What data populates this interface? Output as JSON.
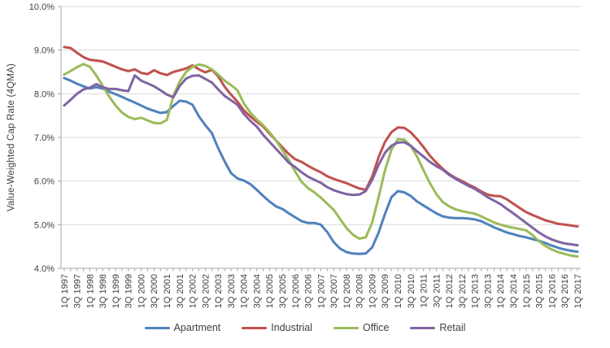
{
  "chart_data": {
    "type": "line",
    "title": "",
    "xlabel": "",
    "ylabel": "Value-Weighted Cap Rate (4QMA)",
    "ylim": [
      4.0,
      10.0
    ],
    "ytick_labels": [
      "10.0%",
      "9.0%",
      "8.0%",
      "7.0%",
      "6.0%",
      "5.0%",
      "4.0%"
    ],
    "x_label_interval": 2,
    "grid": "horizontal",
    "legend_position": "bottom",
    "colors": {
      "grid": "#D9D9D9",
      "axis": "#A6A6A6",
      "text": "#404040"
    },
    "categories": [
      "1Q 1997",
      "2Q 1997",
      "3Q 1997",
      "4Q 1997",
      "1Q 1998",
      "2Q 1998",
      "3Q 1998",
      "4Q 1998",
      "1Q 1999",
      "2Q 1999",
      "3Q 1999",
      "4Q 1999",
      "1Q 2000",
      "2Q 2000",
      "3Q 2000",
      "4Q 2000",
      "1Q 2001",
      "2Q 2001",
      "3Q 2001",
      "4Q 2001",
      "1Q 2002",
      "2Q 2002",
      "3Q 2002",
      "4Q 2002",
      "1Q 2003",
      "2Q 2003",
      "3Q 2003",
      "4Q 2003",
      "1Q 2004",
      "2Q 2004",
      "3Q 2004",
      "4Q 2004",
      "1Q 2005",
      "2Q 2005",
      "3Q 2005",
      "4Q 2005",
      "1Q 2006",
      "2Q 2006",
      "3Q 2006",
      "4Q 2006",
      "1Q 2007",
      "2Q 2007",
      "3Q 2007",
      "4Q 2007",
      "1Q 2008",
      "2Q 2008",
      "3Q 2008",
      "4Q 2008",
      "1Q 2009",
      "2Q 2009",
      "3Q 2009",
      "4Q 2009",
      "1Q 2010",
      "2Q 2010",
      "3Q 2010",
      "4Q 2010",
      "1Q 2011",
      "2Q 2011",
      "3Q 2011",
      "4Q 2011",
      "1Q 2012",
      "2Q 2012",
      "3Q 2012",
      "4Q 2012",
      "1Q 2013",
      "2Q 2013",
      "3Q 2013",
      "4Q 2013",
      "1Q 2014",
      "2Q 2014",
      "3Q 2014",
      "4Q 2014",
      "1Q 2015",
      "2Q 2015",
      "3Q 2015",
      "4Q 2015",
      "1Q 2016",
      "2Q 2016",
      "3Q 2016",
      "4Q 2016",
      "1Q 2017"
    ],
    "series": [
      {
        "name": "Apartment",
        "color": "#4F81BD",
        "values": [
          8.36,
          8.3,
          8.23,
          8.17,
          8.12,
          8.15,
          8.12,
          8.05,
          7.99,
          7.93,
          7.86,
          7.8,
          7.73,
          7.66,
          7.61,
          7.56,
          7.58,
          7.72,
          7.84,
          7.82,
          7.75,
          7.48,
          7.28,
          7.1,
          6.75,
          6.45,
          6.18,
          6.06,
          6.01,
          5.93,
          5.8,
          5.66,
          5.53,
          5.42,
          5.36,
          5.26,
          5.17,
          5.08,
          5.04,
          5.04,
          5.0,
          4.83,
          4.6,
          4.45,
          4.37,
          4.34,
          4.33,
          4.34,
          4.48,
          4.82,
          5.25,
          5.63,
          5.77,
          5.74,
          5.66,
          5.53,
          5.44,
          5.35,
          5.26,
          5.19,
          5.16,
          5.15,
          5.15,
          5.14,
          5.12,
          5.08,
          5.01,
          4.94,
          4.88,
          4.82,
          4.78,
          4.74,
          4.71,
          4.67,
          4.63,
          4.58,
          4.52,
          4.47,
          4.43,
          4.4,
          4.38
        ]
      },
      {
        "name": "Industrial",
        "color": "#C0504D",
        "values": [
          9.07,
          9.05,
          8.94,
          8.84,
          8.78,
          8.76,
          8.74,
          8.68,
          8.62,
          8.56,
          8.52,
          8.56,
          8.48,
          8.45,
          8.54,
          8.47,
          8.43,
          8.5,
          8.54,
          8.58,
          8.65,
          8.56,
          8.49,
          8.55,
          8.4,
          8.16,
          7.98,
          7.82,
          7.62,
          7.48,
          7.36,
          7.25,
          7.09,
          6.93,
          6.77,
          6.62,
          6.5,
          6.44,
          6.35,
          6.27,
          6.2,
          6.11,
          6.05,
          6.0,
          5.95,
          5.89,
          5.83,
          5.8,
          6.1,
          6.55,
          6.9,
          7.12,
          7.23,
          7.22,
          7.12,
          6.96,
          6.78,
          6.58,
          6.42,
          6.28,
          6.16,
          6.07,
          6.0,
          5.92,
          5.85,
          5.76,
          5.69,
          5.66,
          5.65,
          5.58,
          5.48,
          5.38,
          5.29,
          5.22,
          5.16,
          5.1,
          5.06,
          5.02,
          5.0,
          4.98,
          4.96
        ]
      },
      {
        "name": "Office",
        "color": "#9BBB59",
        "values": [
          8.44,
          8.52,
          8.61,
          8.68,
          8.62,
          8.42,
          8.18,
          7.94,
          7.73,
          7.57,
          7.47,
          7.42,
          7.45,
          7.39,
          7.33,
          7.32,
          7.4,
          7.95,
          8.28,
          8.5,
          8.62,
          8.67,
          8.64,
          8.56,
          8.44,
          8.3,
          8.2,
          8.08,
          7.78,
          7.57,
          7.41,
          7.28,
          7.12,
          6.93,
          6.71,
          6.48,
          6.22,
          5.98,
          5.84,
          5.74,
          5.62,
          5.48,
          5.34,
          5.13,
          4.92,
          4.77,
          4.68,
          4.71,
          5.05,
          5.63,
          6.25,
          6.72,
          6.96,
          6.95,
          6.81,
          6.56,
          6.25,
          5.95,
          5.7,
          5.52,
          5.42,
          5.35,
          5.31,
          5.28,
          5.25,
          5.19,
          5.12,
          5.05,
          5.0,
          4.96,
          4.93,
          4.9,
          4.87,
          4.76,
          4.62,
          4.51,
          4.43,
          4.37,
          4.33,
          4.29,
          4.27
        ]
      },
      {
        "name": "Retail",
        "color": "#8064A2",
        "values": [
          7.73,
          7.86,
          8.0,
          8.1,
          8.14,
          8.22,
          8.15,
          8.11,
          8.11,
          8.08,
          8.06,
          8.42,
          8.3,
          8.24,
          8.17,
          8.08,
          7.98,
          7.92,
          8.18,
          8.35,
          8.41,
          8.42,
          8.34,
          8.26,
          8.1,
          7.95,
          7.85,
          7.75,
          7.54,
          7.38,
          7.25,
          7.06,
          6.9,
          6.74,
          6.58,
          6.42,
          6.32,
          6.2,
          6.1,
          6.03,
          5.96,
          5.86,
          5.79,
          5.74,
          5.7,
          5.68,
          5.69,
          5.77,
          6.03,
          6.37,
          6.65,
          6.81,
          6.88,
          6.89,
          6.81,
          6.68,
          6.56,
          6.44,
          6.34,
          6.26,
          6.14,
          6.05,
          5.97,
          5.89,
          5.82,
          5.73,
          5.63,
          5.55,
          5.47,
          5.36,
          5.26,
          5.15,
          5.04,
          4.93,
          4.82,
          4.73,
          4.66,
          4.61,
          4.57,
          4.55,
          4.53
        ]
      }
    ]
  }
}
